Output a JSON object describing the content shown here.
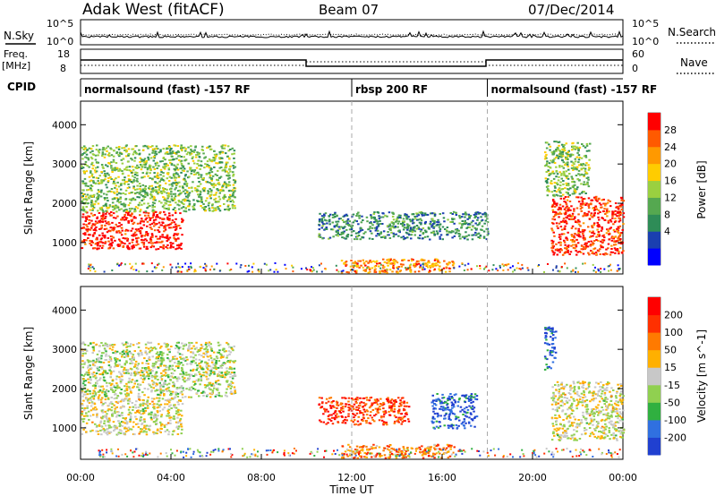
{
  "header": {
    "station": "Adak West (fitACF)",
    "beam": "Beam 07",
    "date": "07/Dec/2014"
  },
  "noise_panel": {
    "left_label": "N.Sky",
    "right_label": "N.Search",
    "left_ticks": [
      "10^5",
      "10^0"
    ],
    "right_ticks": [
      "10^5",
      "10^0"
    ]
  },
  "freq_panel": {
    "left_label_1": "Freq.",
    "left_label_2": "[MHz]",
    "right_label": "Nave",
    "left_ticks": [
      "18",
      "8"
    ],
    "right_ticks": [
      "60",
      "0"
    ]
  },
  "cpid": {
    "label": "CPID",
    "segments": [
      {
        "name": "normalsound (fast) -157 RF",
        "start_hour": 0,
        "end_hour": 12
      },
      {
        "name": "rbsp 200 RF",
        "start_hour": 12,
        "end_hour": 18
      },
      {
        "name": "normalsound (fast) -157 RF",
        "start_hour": 18,
        "end_hour": 24
      }
    ]
  },
  "chart_data": [
    {
      "type": "heatmap",
      "name": "power",
      "ylabel": "Slant Range [km]",
      "xlabel": "",
      "xlim": [
        0,
        24
      ],
      "ylim": [
        200,
        4600
      ],
      "y_ticks": [
        1000,
        2000,
        3000,
        4000
      ],
      "colorbar_label": "Power [dB]",
      "colorbar_ticks": [
        "28",
        "24",
        "20",
        "16",
        "12",
        "8",
        "4"
      ],
      "colorbar_colors": [
        "#0000ff",
        "#1a3fb0",
        "#2e8c57",
        "#55a850",
        "#9ad040",
        "#ffcc00",
        "#ff9900",
        "#ff5a00",
        "#ff0000"
      ],
      "regions": [
        {
          "x0": 0.0,
          "x1": 4.5,
          "y0": 850,
          "y1": 1800,
          "level": 0.95
        },
        {
          "x0": 0.0,
          "x1": 6.8,
          "y0": 1800,
          "y1": 3500,
          "level": 0.45
        },
        {
          "x0": 10.5,
          "x1": 18.0,
          "y0": 1100,
          "y1": 1800,
          "level": 0.3
        },
        {
          "x0": 11.5,
          "x1": 16.5,
          "y0": 250,
          "y1": 600,
          "level": 0.75
        },
        {
          "x0": 20.8,
          "x1": 24.0,
          "y0": 700,
          "y1": 2200,
          "level": 0.9
        },
        {
          "x0": 20.5,
          "x1": 22.5,
          "y0": 2200,
          "y1": 3600,
          "level": 0.45
        }
      ]
    },
    {
      "type": "heatmap",
      "name": "velocity",
      "ylabel": "Slant Range [km]",
      "xlabel": "Time UT",
      "xlim": [
        0,
        24
      ],
      "ylim": [
        200,
        4600
      ],
      "y_ticks": [
        1000,
        2000,
        3000,
        4000
      ],
      "x_ticks": [
        "00:00",
        "04:00",
        "08:00",
        "12:00",
        "16:00",
        "20:00",
        "00:00"
      ],
      "colorbar_label": "Velocity [m s^-1]",
      "colorbar_ticks": [
        "200",
        "100",
        "50",
        "15",
        "-15",
        "-50",
        "-100",
        "-200"
      ],
      "colorbar_colors": [
        "#2040d0",
        "#3070e0",
        "#30b040",
        "#90d050",
        "#c8c8c8",
        "#ffb000",
        "#ff7a00",
        "#ff3000",
        "#ff0000"
      ],
      "regions": [
        {
          "x0": 0.0,
          "x1": 4.5,
          "y0": 850,
          "y1": 1800,
          "level": 0.5
        },
        {
          "x0": 0.0,
          "x1": 6.8,
          "y0": 1800,
          "y1": 3200,
          "level": 0.45
        },
        {
          "x0": 10.5,
          "x1": 14.5,
          "y0": 1100,
          "y1": 1800,
          "level": 0.85
        },
        {
          "x0": 15.5,
          "x1": 17.5,
          "y0": 1000,
          "y1": 1900,
          "level": 0.1
        },
        {
          "x0": 11.5,
          "x1": 16.5,
          "y0": 250,
          "y1": 600,
          "level": 0.7
        },
        {
          "x0": 20.8,
          "x1": 24.0,
          "y0": 700,
          "y1": 2200,
          "level": 0.5
        },
        {
          "x0": 20.5,
          "x1": 21.0,
          "y0": 2500,
          "y1": 3600,
          "level": 0.1
        }
      ]
    }
  ]
}
